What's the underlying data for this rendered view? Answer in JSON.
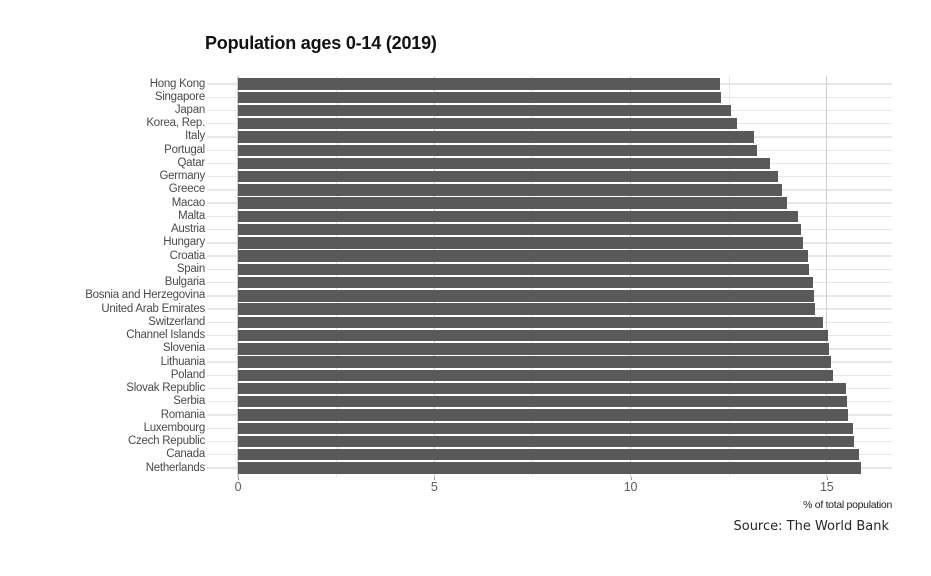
{
  "title": "Population ages 0-14 (2019)",
  "axis_caption": "% of total population",
  "source": "Source: The World Bank",
  "colors": {
    "bar": "#595959",
    "grid_major": "#cfcfcf",
    "grid_minor": "#e7e7e7",
    "row_gridline": "#e7e7e7",
    "title_text": "#111111",
    "category_text": "#4a4a4a",
    "tick_text": "#5e5e5e",
    "background": "#ffffff"
  },
  "chart_data": {
    "type": "bar",
    "orientation": "horizontal",
    "title": "Population ages 0-14 (2019)",
    "xlabel": "% of total population",
    "ylabel": "",
    "source": "Source: The World Bank",
    "sort_order": "ascending from top",
    "grid": true,
    "legend": false,
    "xlim": [
      0,
      16.66
    ],
    "xticks": [
      0,
      5,
      10,
      15
    ],
    "xticks_minor": [
      2.5,
      7.5,
      12.5
    ],
    "categories": [
      "Hong Kong",
      "Singapore",
      "Japan",
      "Korea, Rep.",
      "Italy",
      "Portugal",
      "Qatar",
      "Germany",
      "Greece",
      "Macao",
      "Malta",
      "Austria",
      "Hungary",
      "Croatia",
      "Spain",
      "Bulgaria",
      "Bosnia and Herzegovina",
      "United Arab Emirates",
      "Switzerland",
      "Channel Islands",
      "Slovenia",
      "Lithuania",
      "Poland",
      "Slovak Republic",
      "Serbia",
      "Romania",
      "Luxembourg",
      "Czech Republic",
      "Canada",
      "Netherlands"
    ],
    "values": [
      12.29,
      12.3,
      12.56,
      12.71,
      13.15,
      13.22,
      13.56,
      13.77,
      13.86,
      13.99,
      14.27,
      14.34,
      14.4,
      14.51,
      14.56,
      14.65,
      14.68,
      14.7,
      14.9,
      15.02,
      15.06,
      15.1,
      15.15,
      15.48,
      15.51,
      15.54,
      15.66,
      15.69,
      15.82,
      15.86
    ]
  }
}
